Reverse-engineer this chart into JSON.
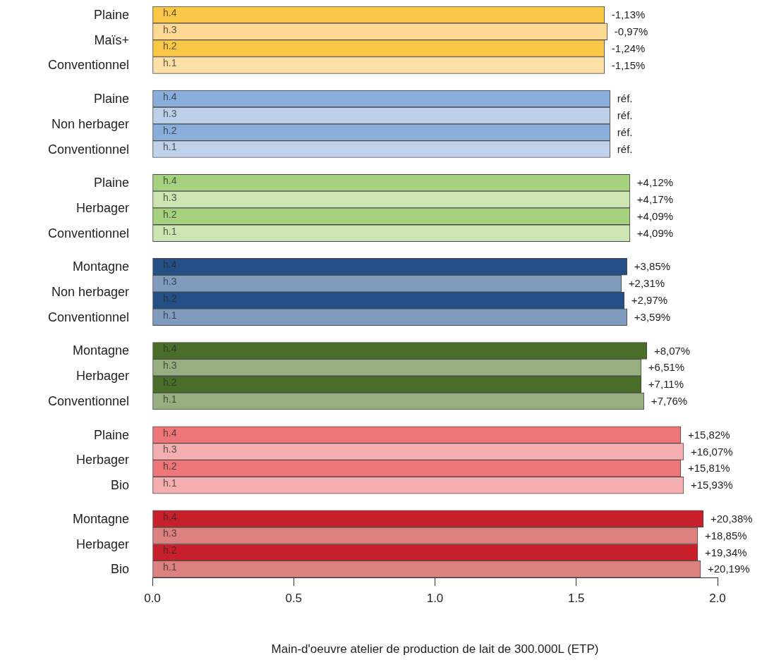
{
  "chart_data": {
    "type": "bar",
    "orientation": "horizontal",
    "xlabel": "Main-d'oeuvre atelier de production de lait de 300.000L (ETP)",
    "categories": [
      "h.4",
      "h.3",
      "h.2",
      "h.1",
      null,
      "h.4",
      "h.3",
      "h.2",
      "h.1",
      null,
      "h.4",
      "h.3",
      "h.2",
      "h.1",
      null,
      "h.4",
      "h.3",
      "h.2",
      "h.1",
      null,
      "h.4",
      "h.3",
      "h.2",
      "h.1",
      null,
      "h.4",
      "h.3",
      "h.2",
      "h.1",
      null,
      "h.4",
      "h.3",
      "h.2",
      "h.1"
    ],
    "values": [
      1.6,
      1.61,
      1.6,
      1.6,
      null,
      1.62,
      1.62,
      1.62,
      1.62,
      null,
      1.69,
      1.69,
      1.69,
      1.69,
      null,
      1.68,
      1.66,
      1.67,
      1.68,
      null,
      1.75,
      1.73,
      1.73,
      1.74,
      null,
      1.87,
      1.88,
      1.87,
      1.88,
      null,
      1.95,
      1.93,
      1.93,
      1.94
    ],
    "colors": [
      "#fbc748",
      "#fdd993",
      "#fbc748",
      "#fde0a6",
      null,
      "#8aaedb",
      "#bcd0ea",
      "#8aaedb",
      "#bfd2ea",
      null,
      "#a6d17f",
      "#cce5b2",
      "#a6d17f",
      "#cce5b2",
      null,
      "#234f86",
      "#7f9bbd",
      "#234f86",
      "#7f9bbd",
      null,
      "#4a6e2a",
      "#97ae80",
      "#4a6e2a",
      "#97ae80",
      null,
      "#ef7676",
      "#f5aeb0",
      "#ef7676",
      "#f5aeb0",
      null,
      "#c8202a",
      "#dc8080",
      "#c8202a",
      "#dc8080"
    ],
    "annotations": [
      "Plaine\nMaïs+\nConventionnel",
      "Plaine\nNon herbager\nConventionnel",
      "Plaine\nHerbager\nConventionnel",
      "Montagne\nNon herbager\nConventionnel",
      "Montagne\nHerbager\nConventionnel",
      "Plaine\nHerbager\nBio",
      "Montagne\nHerbager\nBio",
      "-1,13%",
      "-0,97%",
      "-1,24%",
      "-1,15%",
      "réf.",
      "réf.",
      "réf.",
      "réf.",
      "+4,12%",
      "+4,17%",
      "+4,09%",
      "+4,09%",
      "+3,85%",
      "+2,31%",
      "+2,97%",
      "+3,59%",
      "+8,07%",
      "+6,51%",
      "+7,11%",
      "+7,76%",
      "+15,82%",
      "+16,07%",
      "+15,81%",
      "+15,93%",
      "+20,38%",
      "+18,85%",
      "+19,34%",
      "+20,19%"
    ],
    "xlim": [
      0,
      2
    ],
    "xticks": [
      {
        "value": 0,
        "label": "0.0"
      },
      {
        "value": 0.5,
        "label": "0.5"
      },
      {
        "value": 1,
        "label": "1.0"
      },
      {
        "value": 1.5,
        "label": "1.5"
      },
      {
        "value": 2,
        "label": "2.0"
      }
    ],
    "grid": false,
    "legend": false
  }
}
